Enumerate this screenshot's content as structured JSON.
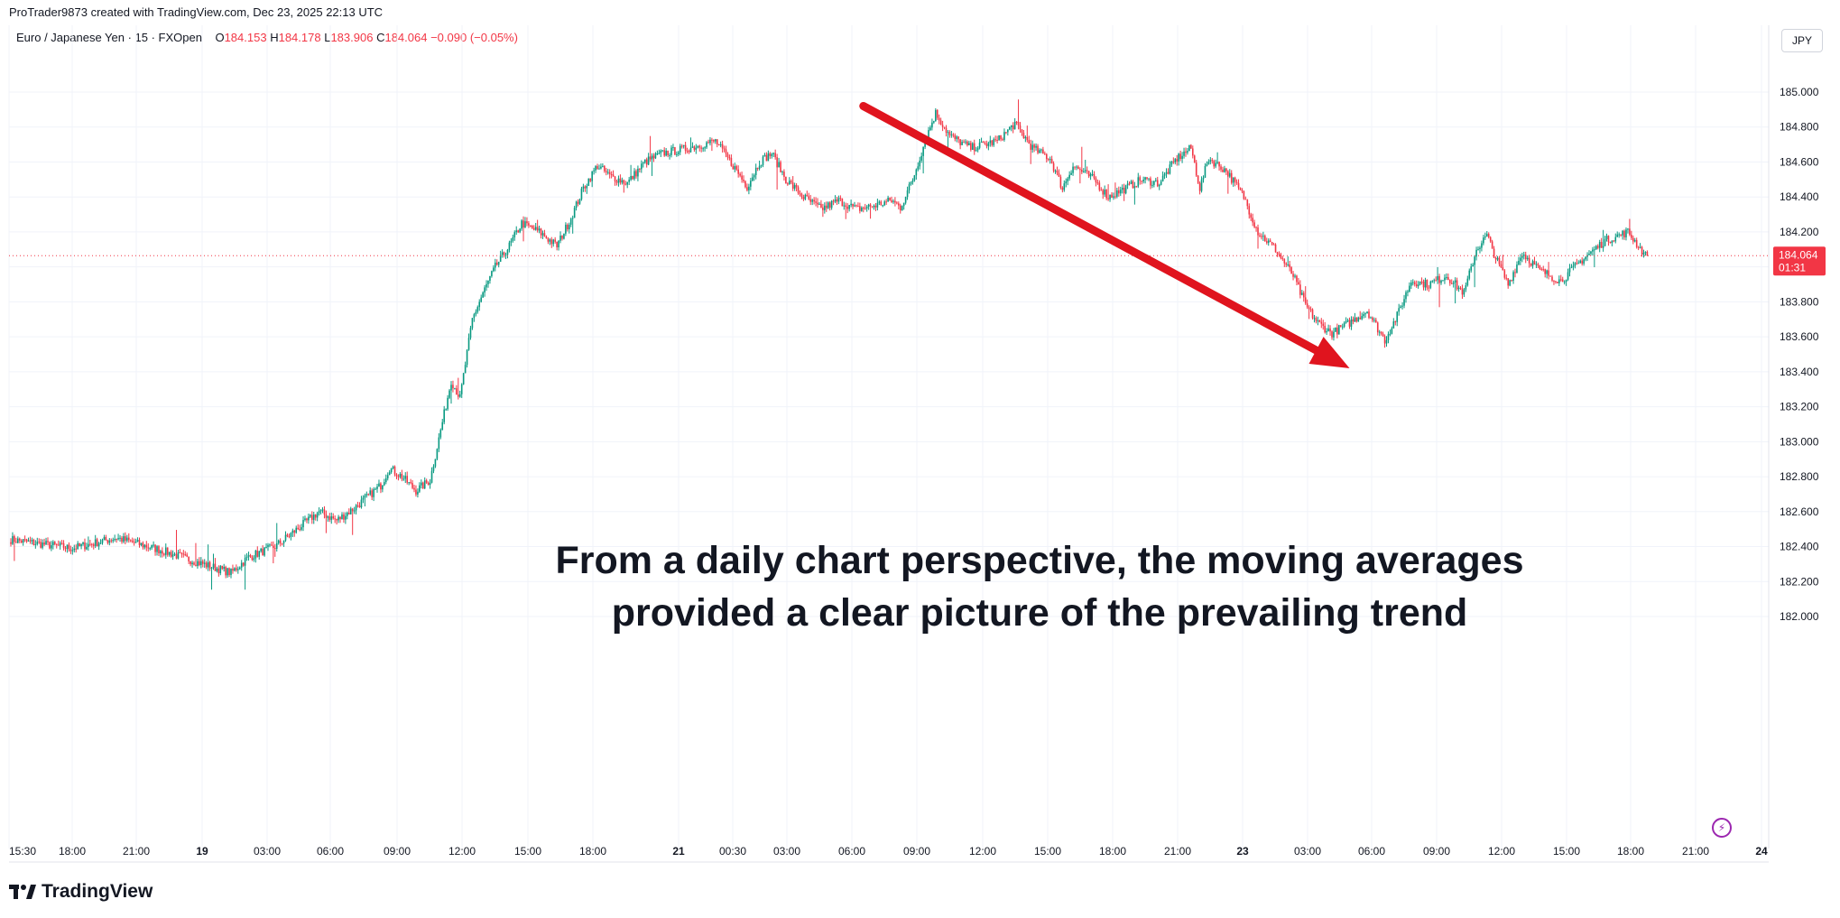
{
  "header": {
    "credit": "ProTrader9873 created with TradingView.com, Dec 23, 2025 22:13 UTC",
    "symbol": "Euro / Japanese Yen · 15 · FXOpen",
    "ohlc": {
      "o_label": "O",
      "o": "184.153",
      "h_label": "H",
      "h": "184.178",
      "l_label": "L",
      "l": "183.906",
      "c_label": "C",
      "c": "184.064",
      "change": "−0.090 (−0.05%)"
    },
    "currency": "JPY"
  },
  "brand": {
    "name": "TradingView"
  },
  "colors": {
    "up": "#089981",
    "down": "#f23645",
    "arrow": "#e0141e",
    "grid": "#f0f3fa"
  },
  "chart_data": {
    "type": "candlestick",
    "symbol": "EURJPY",
    "interval": "15",
    "ylim": [
      181.9,
      185.2
    ],
    "y_ticks": [
      182.0,
      182.2,
      182.4,
      182.6,
      182.8,
      183.0,
      183.2,
      183.4,
      183.6,
      183.8,
      184.0,
      184.2,
      184.4,
      184.6,
      184.8,
      185.0
    ],
    "y_tick_labels": [
      "182.000",
      "182.200",
      "182.400",
      "182.600",
      "182.800",
      "183.000",
      "183.200",
      "183.400",
      "183.600",
      "183.800",
      "184.000",
      "184.200",
      "184.400",
      "184.600",
      "184.800",
      "185.000"
    ],
    "x_ticks": [
      "15:30",
      "18:00",
      "21:00",
      "19",
      "03:00",
      "06:00",
      "09:00",
      "12:00",
      "15:00",
      "18:00",
      "21",
      "00:30",
      "03:00",
      "06:00",
      "09:00",
      "12:00",
      "15:00",
      "18:00",
      "21:00",
      "23",
      "03:00",
      "06:00",
      "09:00",
      "12:00",
      "15:00",
      "18:00",
      "21:00",
      "24"
    ],
    "bold_ticks": [
      "19",
      "21",
      "23",
      "24"
    ],
    "price_path": [
      [
        0,
        182.44
      ],
      [
        35,
        182.39
      ],
      [
        60,
        182.45
      ],
      [
        85,
        182.38
      ],
      [
        100,
        182.33
      ],
      [
        125,
        182.25
      ],
      [
        135,
        182.34
      ],
      [
        150,
        182.4
      ],
      [
        165,
        182.52
      ],
      [
        175,
        182.6
      ],
      [
        185,
        182.55
      ],
      [
        195,
        182.62
      ],
      [
        210,
        182.75
      ],
      [
        215,
        182.85
      ],
      [
        222,
        182.8
      ],
      [
        230,
        182.72
      ],
      [
        238,
        182.78
      ],
      [
        250,
        183.35
      ],
      [
        255,
        183.25
      ],
      [
        262,
        183.7
      ],
      [
        268,
        183.85
      ],
      [
        275,
        184.0
      ],
      [
        283,
        184.12
      ],
      [
        290,
        184.25
      ],
      [
        300,
        184.2
      ],
      [
        310,
        184.12
      ],
      [
        318,
        184.28
      ],
      [
        325,
        184.45
      ],
      [
        333,
        184.58
      ],
      [
        340,
        184.52
      ],
      [
        350,
        184.48
      ],
      [
        360,
        184.6
      ],
      [
        370,
        184.65
      ],
      [
        385,
        184.68
      ],
      [
        400,
        184.72
      ],
      [
        410,
        184.58
      ],
      [
        418,
        184.46
      ],
      [
        425,
        184.6
      ],
      [
        432,
        184.65
      ],
      [
        440,
        184.5
      ],
      [
        450,
        184.4
      ],
      [
        460,
        184.33
      ],
      [
        470,
        184.38
      ],
      [
        480,
        184.33
      ],
      [
        490,
        184.35
      ],
      [
        500,
        184.38
      ],
      [
        505,
        184.34
      ],
      [
        512,
        184.5
      ],
      [
        520,
        184.75
      ],
      [
        525,
        184.88
      ],
      [
        533,
        184.75
      ],
      [
        545,
        184.68
      ],
      [
        560,
        184.72
      ],
      [
        570,
        184.82
      ],
      [
        580,
        184.68
      ],
      [
        590,
        184.62
      ],
      [
        597,
        184.45
      ],
      [
        603,
        184.58
      ],
      [
        615,
        184.5
      ],
      [
        623,
        184.4
      ],
      [
        633,
        184.45
      ],
      [
        642,
        184.5
      ],
      [
        652,
        184.48
      ],
      [
        662,
        184.62
      ],
      [
        670,
        184.68
      ],
      [
        675,
        184.45
      ],
      [
        680,
        184.62
      ],
      [
        690,
        184.55
      ],
      [
        700,
        184.4
      ],
      [
        708,
        184.2
      ],
      [
        718,
        184.1
      ],
      [
        728,
        183.95
      ],
      [
        735,
        183.78
      ],
      [
        742,
        183.68
      ],
      [
        750,
        183.62
      ],
      [
        760,
        183.68
      ],
      [
        770,
        183.75
      ],
      [
        780,
        183.58
      ],
      [
        787,
        183.72
      ],
      [
        795,
        183.92
      ],
      [
        805,
        183.9
      ],
      [
        815,
        183.95
      ],
      [
        825,
        183.85
      ],
      [
        832,
        184.1
      ],
      [
        838,
        184.18
      ],
      [
        843,
        184.05
      ],
      [
        850,
        183.9
      ],
      [
        858,
        184.08
      ],
      [
        868,
        183.98
      ],
      [
        880,
        183.92
      ],
      [
        893,
        184.05
      ],
      [
        905,
        184.15
      ],
      [
        918,
        184.2
      ],
      [
        924,
        184.12
      ],
      [
        928,
        184.064
      ]
    ],
    "current_price": "184.064",
    "countdown": "01:31",
    "annotation": {
      "text_line1": "From a daily chart perspective, the moving averages",
      "text_line2": "provided a clear picture of the prevailing trend",
      "arrow": {
        "from": [
          484,
          184.92
        ],
        "to": [
          760,
          183.42
        ]
      }
    }
  }
}
